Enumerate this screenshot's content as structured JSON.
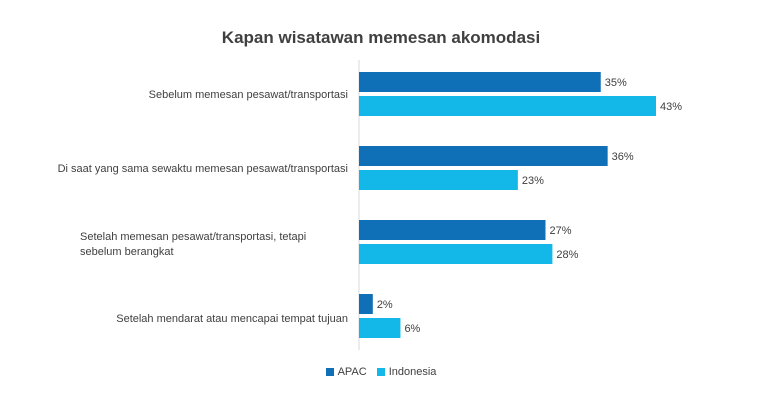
{
  "chart_data": {
    "type": "bar",
    "orientation": "horizontal",
    "title": "Kapan wisatawan memesan akomodasi",
    "categories": [
      "Sebelum memesan pesawat/transportasi",
      "Di saat yang sama sewaktu memesan pesawat/transportasi",
      "Setelah memesan pesawat/transportasi, tetapi sebelum berangkat",
      "Setelah mendarat atau mencapai tempat tujuan"
    ],
    "series": [
      {
        "name": "APAC",
        "color": "#0F6FB7",
        "values": [
          35,
          36,
          27,
          2
        ],
        "labels": [
          "35%",
          "36%",
          "27%",
          "2%"
        ]
      },
      {
        "name": "Indonesia",
        "color": "#14B8E8",
        "values": [
          43,
          23,
          28,
          6
        ],
        "labels": [
          "43%",
          "23%",
          "28%",
          "6%"
        ]
      }
    ],
    "xlim": [
      0,
      50
    ],
    "unit": "%",
    "grid": false,
    "legend_position": "bottom"
  }
}
